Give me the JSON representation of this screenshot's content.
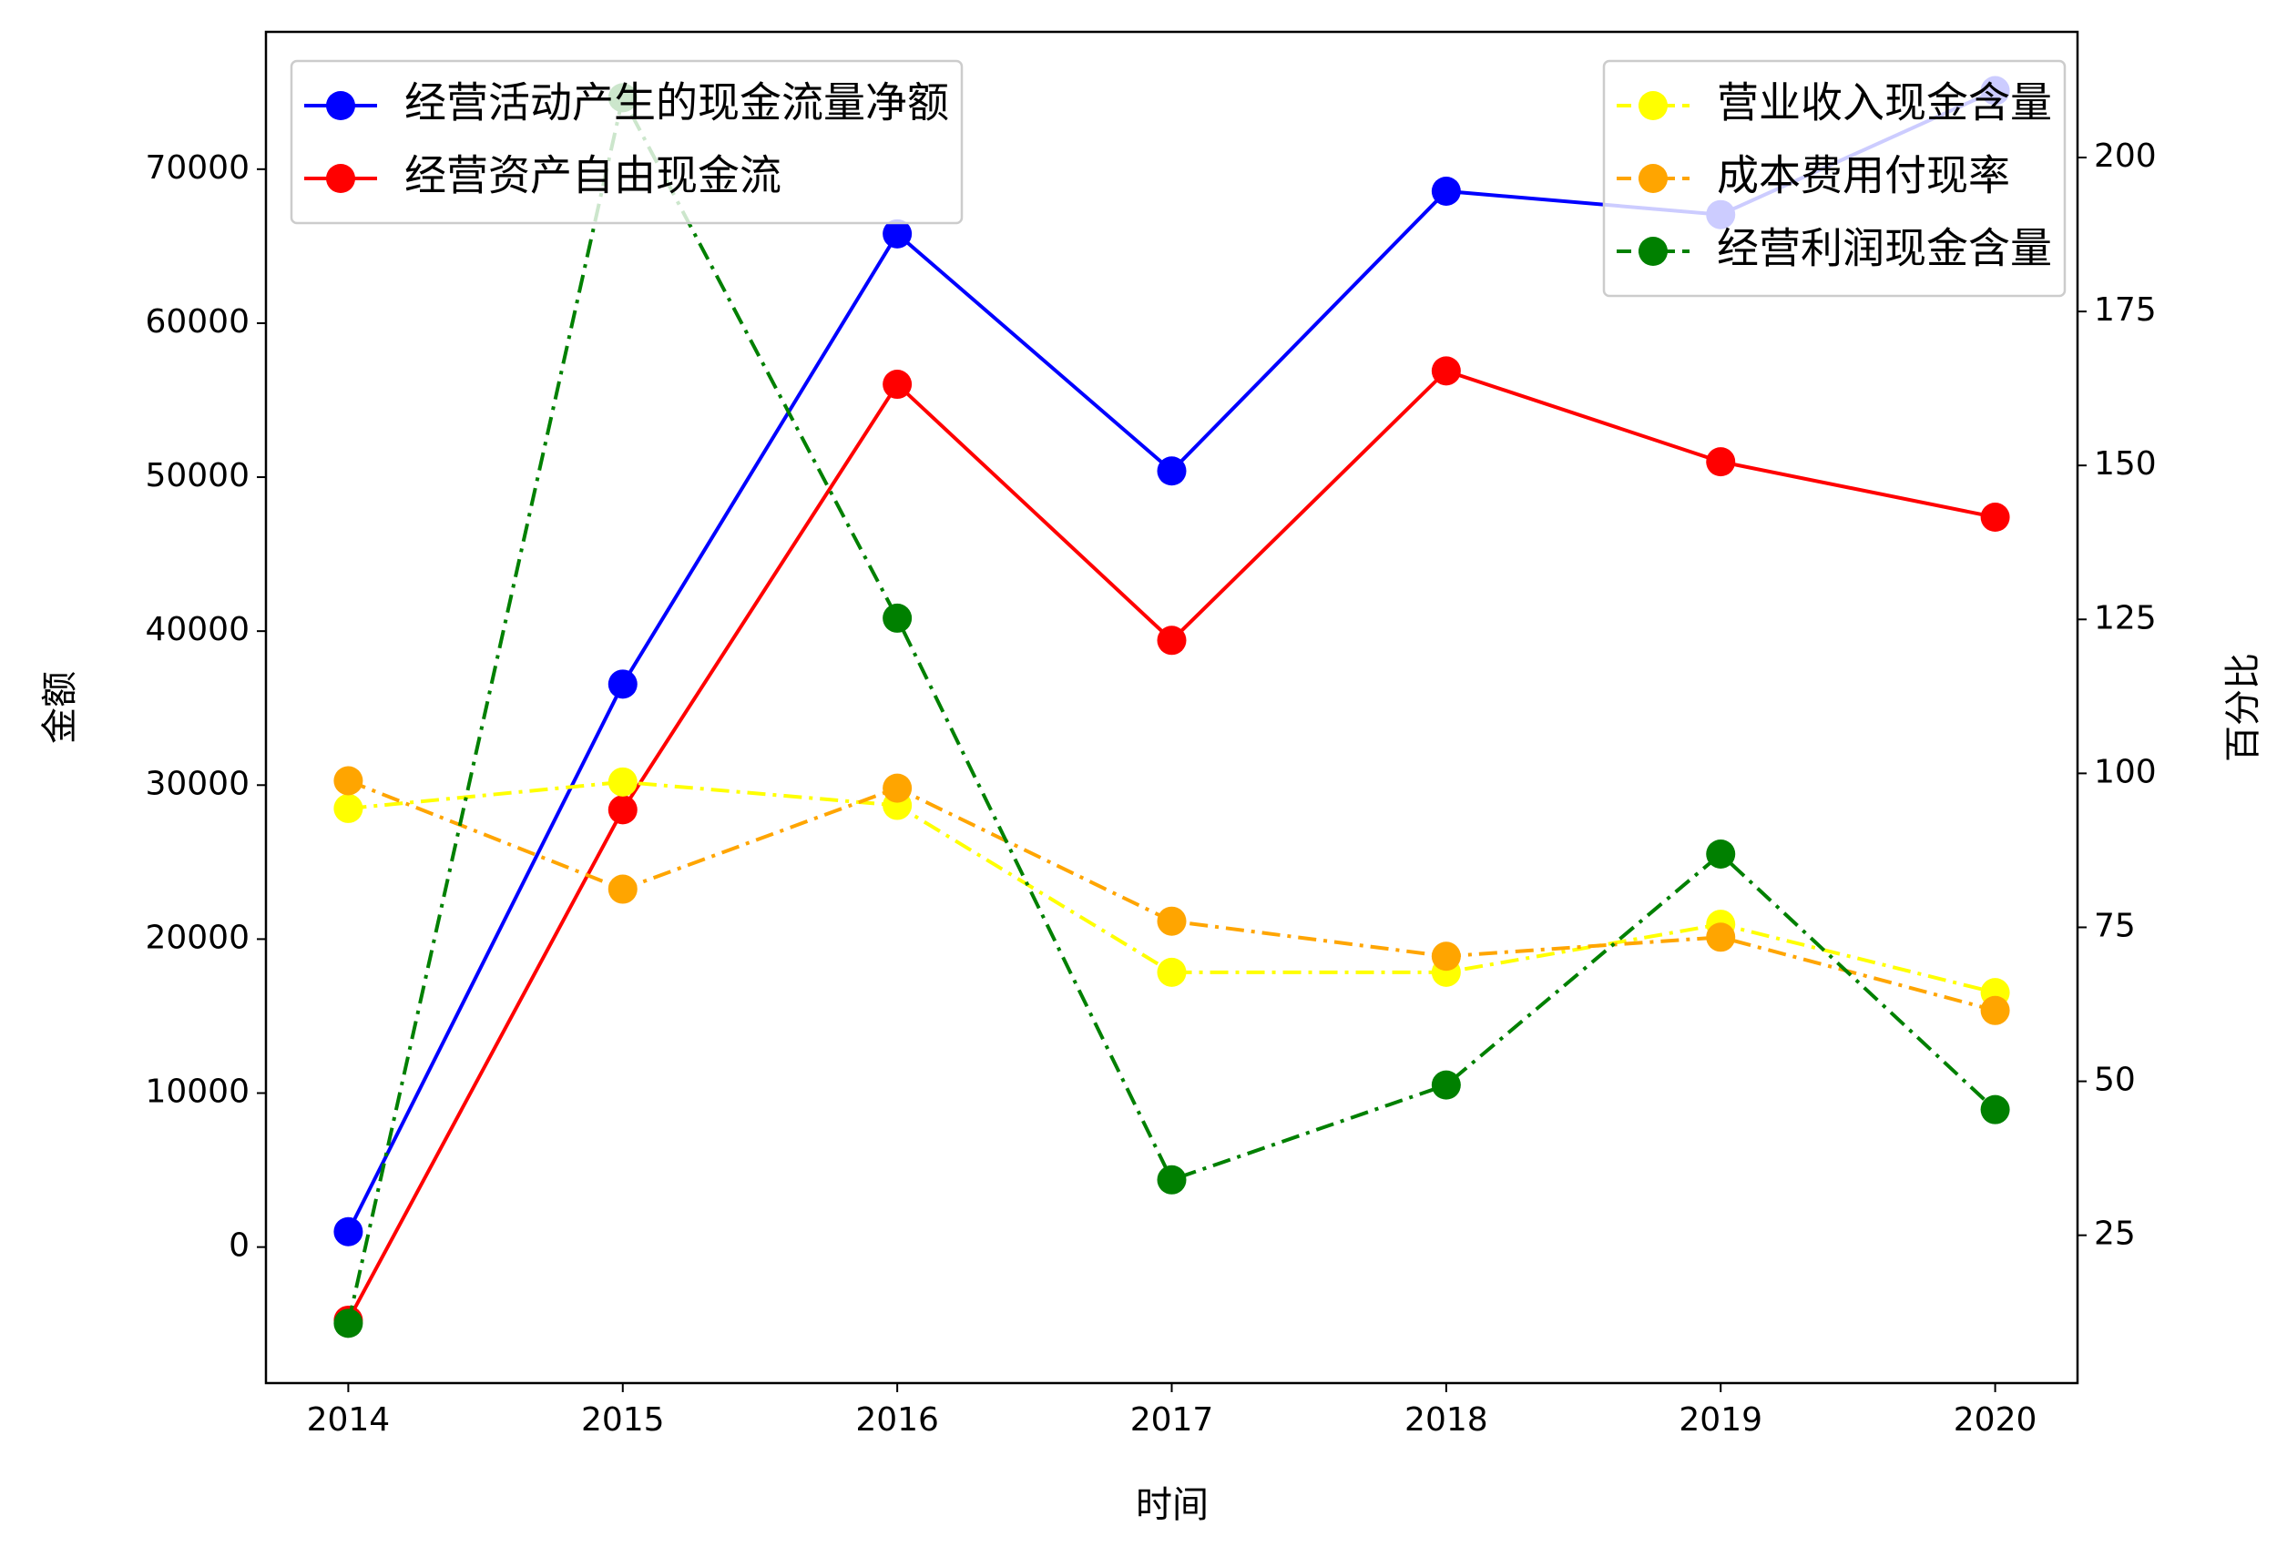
{
  "chart_data": {
    "type": "line",
    "x": [
      2014,
      2015,
      2016,
      2017,
      2018,
      2019,
      2020
    ],
    "xlim": [
      2013.7,
      2020.3
    ],
    "xticks": [
      2014,
      2015,
      2016,
      2017,
      2018,
      2019,
      2020
    ],
    "ylim": [
      -8832,
      78917
    ],
    "yticks": [
      0,
      10000,
      20000,
      30000,
      40000,
      50000,
      60000,
      70000
    ],
    "y2lim": [
      1.0,
      220.4
    ],
    "y2ticks": [
      25,
      50,
      75,
      100,
      125,
      150,
      175,
      200
    ],
    "xlabel": "时间",
    "ylabel": "金额",
    "y2label": "百分比",
    "legend": "upper left",
    "legend2": "upper right",
    "series": [
      {
        "name": "经营活动产生的现金流量净额",
        "color": "#0000ff",
        "linestyle": "solid",
        "values": [
          1000,
          36560,
          65800,
          50400,
          68570,
          67050,
          75100
        ]
      },
      {
        "name": "经营资产自由现金流",
        "color": "#ff0000",
        "linestyle": "solid",
        "values": [
          -4750,
          28400,
          56030,
          39400,
          56900,
          51000,
          47400
        ]
      },
      {
        "name": "营业收入现金含量",
        "color": "#ffff00",
        "linestyle": "dashdot",
        "axis": "y2",
        "values": [
          94.3,
          98.6,
          94.8,
          67.7,
          67.7,
          75.5,
          64.4
        ]
      },
      {
        "name": "成本费用付现率",
        "color": "#ffa500",
        "linestyle": "dashdot",
        "axis": "y2",
        "values": [
          98.8,
          81.2,
          97.6,
          76.0,
          70.3,
          73.4,
          61.5
        ]
      },
      {
        "name": "经营利润现金含量",
        "color": "#008000",
        "linestyle": "dashdot",
        "axis": "y2",
        "values": [
          10.7,
          209.7,
          125.2,
          34.0,
          49.4,
          86.9,
          45.4
        ]
      }
    ]
  }
}
